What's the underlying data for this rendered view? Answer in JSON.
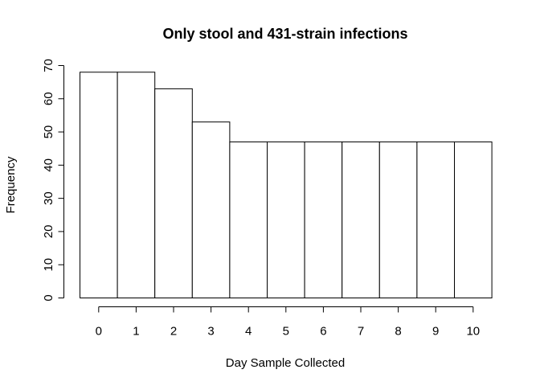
{
  "chart_data": {
    "type": "bar",
    "title": "Only stool and 431-strain infections",
    "xlabel": "Day Sample Collected",
    "ylabel": "Frequency",
    "categories": [
      "0",
      "1",
      "2",
      "3",
      "4",
      "5",
      "6",
      "7",
      "8",
      "9",
      "10"
    ],
    "values": [
      68,
      68,
      63,
      53,
      47,
      47,
      47,
      47,
      47,
      47,
      47
    ],
    "ylim": [
      0,
      70
    ],
    "yticks": [
      "0",
      "10",
      "20",
      "30",
      "40",
      "50",
      "60",
      "70"
    ],
    "grid": false,
    "bar_fill": "#ffffff",
    "bar_stroke": "#000000"
  }
}
